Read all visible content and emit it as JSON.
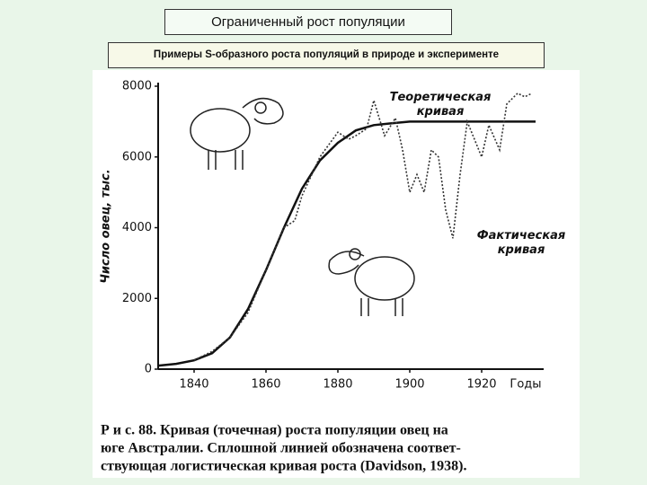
{
  "chart_data": {
    "type": "line",
    "title": "Ограниченный рост популяции",
    "subtitle": "Примеры S-образного роста популяций в природе и эксперименте",
    "y_label": "Число овец, тыс.",
    "x_label": "Годы",
    "caption": [
      "Р и с. 88. Кривая (точечная) роста популяции овец на",
      "юге Австралии. Сплошной линией обозначена соответ-",
      "ствующая логистическая кривая роста (Davidson, 1938)."
    ],
    "xlim": [
      1830,
      1937
    ],
    "ylim": [
      0,
      8000
    ],
    "xticks": [
      1840,
      1860,
      1880,
      1900,
      1920
    ],
    "yticks": [
      0,
      2000,
      4000,
      6000,
      8000
    ],
    "series": [
      {
        "name": "Теоретическая кривая",
        "color": "#111111",
        "dashed": false,
        "x": [
          1830,
          1835,
          1840,
          1845,
          1850,
          1855,
          1860,
          1865,
          1870,
          1875,
          1880,
          1885,
          1890,
          1895,
          1900,
          1910,
          1920,
          1930,
          1935
        ],
        "values": [
          100,
          150,
          250,
          450,
          900,
          1700,
          2800,
          4000,
          5100,
          5900,
          6400,
          6750,
          6900,
          6950,
          7000,
          7000,
          7000,
          7000,
          7000
        ]
      },
      {
        "name": "Фактическая кривая",
        "color": "#333333",
        "dashed": true,
        "x": [
          1840,
          1845,
          1850,
          1855,
          1860,
          1865,
          1868,
          1870,
          1875,
          1880,
          1883,
          1885,
          1888,
          1890,
          1893,
          1896,
          1898,
          1900,
          1902,
          1904,
          1906,
          1908,
          1910,
          1912,
          1914,
          1916,
          1918,
          1920,
          1922,
          1925,
          1927,
          1930,
          1932,
          1934
        ],
        "values": [
          250,
          500,
          900,
          1600,
          2800,
          4000,
          4200,
          4900,
          6000,
          6700,
          6500,
          6600,
          6800,
          7600,
          6600,
          7100,
          6200,
          5000,
          5500,
          5000,
          6200,
          6000,
          4500,
          3700,
          5500,
          7000,
          6500,
          6000,
          6900,
          6200,
          7500,
          7800,
          7700,
          7800
        ]
      }
    ]
  }
}
